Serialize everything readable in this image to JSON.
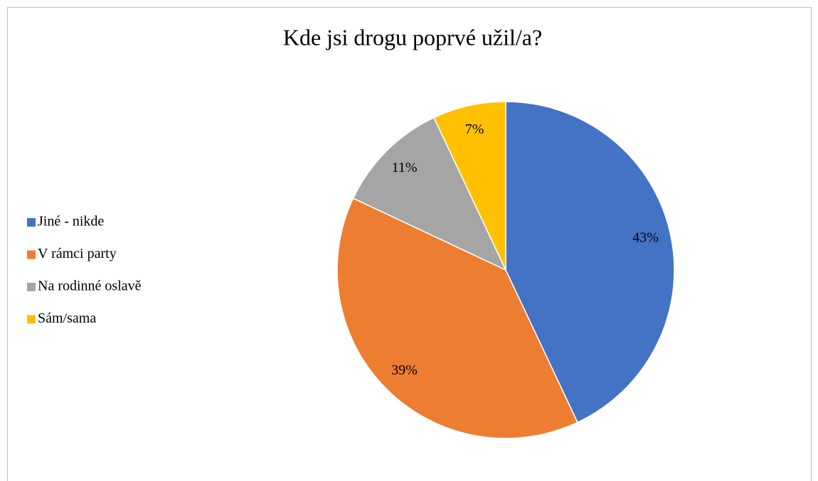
{
  "chart_data": {
    "type": "pie",
    "title": "Kde jsi drogu poprvé užil/a?",
    "categories": [
      "Jiné - nikde",
      "V rámci party",
      "Na rodinné oslavě",
      "Sám/sama"
    ],
    "values": [
      43,
      39,
      11,
      7
    ],
    "value_labels": [
      "43%",
      "39%",
      "11%",
      "7%"
    ],
    "colors": [
      "#4472c4",
      "#ed7d31",
      "#a5a5a5",
      "#ffc000"
    ],
    "legend": "left"
  }
}
